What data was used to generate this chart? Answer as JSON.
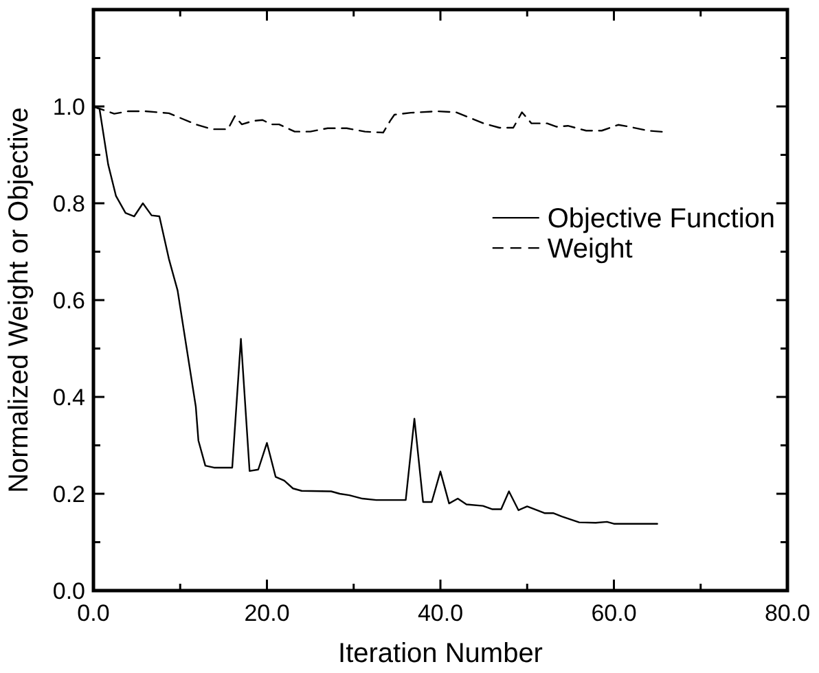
{
  "chart_data": {
    "type": "line",
    "xlabel": "Iteration Number",
    "ylabel": "Normalized Weight or Objective",
    "xlim": [
      0,
      80
    ],
    "ylim": [
      0,
      1.2
    ],
    "xticks": [
      {
        "value": 0,
        "label": "0.0"
      },
      {
        "value": 10,
        "label": null
      },
      {
        "value": 20,
        "label": "20.0"
      },
      {
        "value": 30,
        "label": null
      },
      {
        "value": 40,
        "label": "40.0"
      },
      {
        "value": 50,
        "label": null
      },
      {
        "value": 60,
        "label": "60.0"
      },
      {
        "value": 70,
        "label": null
      },
      {
        "value": 80,
        "label": "80.0"
      }
    ],
    "yticks": [
      {
        "value": 0,
        "label": "0.0"
      },
      {
        "value": 0.1,
        "label": null
      },
      {
        "value": 0.2,
        "label": "0.2"
      },
      {
        "value": 0.3,
        "label": null
      },
      {
        "value": 0.4,
        "label": "0.4"
      },
      {
        "value": 0.5,
        "label": null
      },
      {
        "value": 0.6,
        "label": "0.6"
      },
      {
        "value": 0.7,
        "label": null
      },
      {
        "value": 0.8,
        "label": "0.8"
      },
      {
        "value": 0.9,
        "label": null
      },
      {
        "value": 1.0,
        "label": "1.0"
      },
      {
        "value": 1.1,
        "label": null
      }
    ],
    "legend": "right",
    "grid": false,
    "marker": "none",
    "series": [
      {
        "name": "Objective Function",
        "color": "#000000",
        "line_style": "solid",
        "x": [
          0,
          0.7,
          1.7,
          2.6,
          3.7,
          4.7,
          5.7,
          6.7,
          7.6,
          8.7,
          9.7,
          11.8,
          12.1,
          12.9,
          13.9,
          16,
          17,
          18,
          19,
          20,
          21,
          22,
          23,
          24,
          27.4,
          28.4,
          29.5,
          31,
          32.6,
          36,
          37,
          38,
          39,
          40,
          41,
          42,
          43,
          44.9,
          46,
          47,
          47.9,
          49,
          50,
          52,
          53,
          54,
          56,
          57.9,
          59.2,
          60,
          65
        ],
        "values": [
          1.0,
          0.995,
          0.88,
          0.815,
          0.78,
          0.773,
          0.8,
          0.775,
          0.773,
          0.685,
          0.62,
          0.38,
          0.31,
          0.258,
          0.254,
          0.254,
          0.52,
          0.247,
          0.25,
          0.305,
          0.235,
          0.227,
          0.211,
          0.206,
          0.205,
          0.2,
          0.197,
          0.19,
          0.187,
          0.187,
          0.355,
          0.183,
          0.183,
          0.246,
          0.18,
          0.19,
          0.178,
          0.175,
          0.168,
          0.168,
          0.205,
          0.166,
          0.174,
          0.16,
          0.16,
          0.153,
          0.141,
          0.14,
          0.142,
          0.138,
          0.138
        ]
      },
      {
        "name": "Weight",
        "color": "#000000",
        "line_style": "dashed",
        "x": [
          0,
          2.4,
          4,
          6,
          8.7,
          11.8,
          13.7,
          15.5,
          16.3,
          17.1,
          18.4,
          19.5,
          20.5,
          21.4,
          23.2,
          25,
          27,
          29.2,
          31.3,
          33.4,
          34.2,
          34.7,
          36.6,
          39.7,
          41.8,
          45,
          46.8,
          48.4,
          49.4,
          50.5,
          52.3,
          53.4,
          54.7,
          56.8,
          58.6,
          60.5,
          61.8,
          63.9,
          66
        ],
        "values": [
          1.0,
          0.985,
          0.99,
          0.99,
          0.986,
          0.963,
          0.953,
          0.953,
          0.98,
          0.963,
          0.97,
          0.972,
          0.963,
          0.963,
          0.948,
          0.948,
          0.955,
          0.955,
          0.948,
          0.946,
          0.97,
          0.983,
          0.987,
          0.99,
          0.988,
          0.965,
          0.956,
          0.956,
          0.988,
          0.965,
          0.965,
          0.958,
          0.96,
          0.95,
          0.95,
          0.962,
          0.958,
          0.95,
          0.947
        ]
      }
    ]
  }
}
